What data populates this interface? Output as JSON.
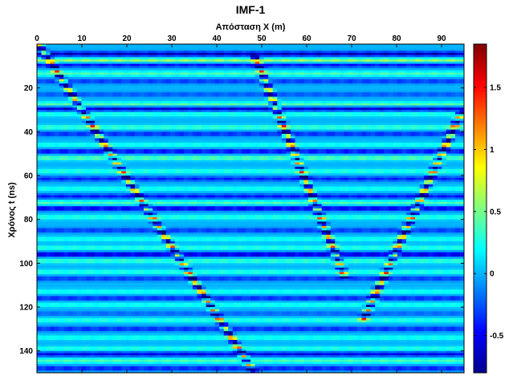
{
  "chart_data": {
    "type": "heatmap",
    "title": "IMF-1",
    "xlabel": "Απόσταση X (m)",
    "ylabel": "Χρόνος t (ns)",
    "x_axis_position": "top",
    "xlim": [
      0,
      95
    ],
    "ylim": [
      0,
      150
    ],
    "y_reversed": true,
    "x_ticks": [
      0,
      10,
      20,
      30,
      40,
      50,
      60,
      70,
      80,
      90
    ],
    "y_ticks": [
      20,
      40,
      60,
      80,
      100,
      120,
      140
    ],
    "colormap": "jet",
    "color_range": [
      -0.8,
      1.85
    ],
    "colorbar_ticks": [
      1.5,
      1,
      0.5,
      0,
      -0.5
    ],
    "colorbar_position": "right",
    "horizontal_bands_ns": [
      {
        "t": 4.5,
        "amp": -0.75
      },
      {
        "t": 7.5,
        "amp": 0.7
      },
      {
        "t": 9.5,
        "amp": -0.55
      },
      {
        "t": 13.5,
        "amp": 0.45
      },
      {
        "t": 17,
        "amp": -0.4
      },
      {
        "t": 23,
        "amp": -0.3
      },
      {
        "t": 27.5,
        "amp": 0.5
      },
      {
        "t": 29.5,
        "amp": -0.7
      },
      {
        "t": 32,
        "amp": 0.35
      },
      {
        "t": 38,
        "amp": 0.4
      },
      {
        "t": 41,
        "amp": -0.45
      },
      {
        "t": 46,
        "amp": 0.3
      },
      {
        "t": 49,
        "amp": -0.55
      },
      {
        "t": 52,
        "amp": 0.5
      },
      {
        "t": 58,
        "amp": 0.35
      },
      {
        "t": 61.5,
        "amp": -0.45
      },
      {
        "t": 66,
        "amp": 0.3
      },
      {
        "t": 69.5,
        "amp": -0.5
      },
      {
        "t": 72.5,
        "amp": 0.45
      },
      {
        "t": 75,
        "amp": -0.65
      },
      {
        "t": 79,
        "amp": 0.35
      },
      {
        "t": 85,
        "amp": -0.4
      },
      {
        "t": 89,
        "amp": 0.3
      },
      {
        "t": 93,
        "amp": 0.35
      },
      {
        "t": 96,
        "amp": -0.7
      },
      {
        "t": 99,
        "amp": 0.4
      },
      {
        "t": 104,
        "amp": 0.35
      },
      {
        "t": 107,
        "amp": -0.4
      },
      {
        "t": 113,
        "amp": 0.3
      },
      {
        "t": 116,
        "amp": -0.45
      },
      {
        "t": 119,
        "amp": 0.3
      },
      {
        "t": 123,
        "amp": -0.25
      },
      {
        "t": 126,
        "amp": 0.35
      },
      {
        "t": 130,
        "amp": -0.45
      },
      {
        "t": 134,
        "amp": 0.3
      },
      {
        "t": 139,
        "amp": 0.35
      },
      {
        "t": 141.5,
        "amp": -0.6
      },
      {
        "t": 144.5,
        "amp": 0.45
      },
      {
        "t": 148,
        "amp": -0.5
      }
    ],
    "diagonal_events": [
      {
        "from": [
          1,
          2
        ],
        "to": [
          49,
          152
        ]
      },
      {
        "from": [
          49,
          8
        ],
        "to": [
          68,
          104
        ]
      },
      {
        "from": [
          94,
          33
        ],
        "to": [
          73,
          124
        ]
      }
    ]
  }
}
